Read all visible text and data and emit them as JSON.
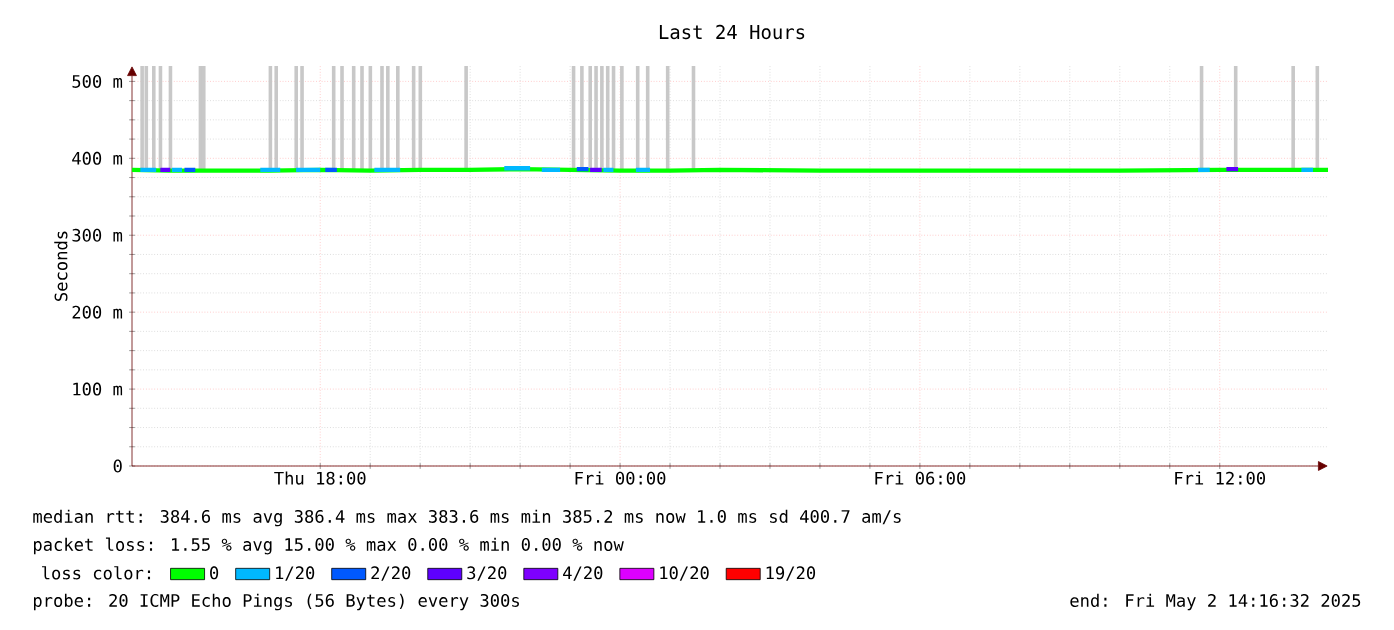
{
  "chart_data": {
    "type": "line",
    "title": "Last 24 Hours",
    "ylabel": "Seconds",
    "legend_title": "loss color:",
    "xlim": [
      "2025-05-01T14:14",
      "2025-05-02T14:10"
    ],
    "ylim": [
      0,
      520
    ],
    "xticks": [
      {
        "value": "2025-05-01T18:00",
        "label": "Thu 18:00"
      },
      {
        "value": "2025-05-02T00:00",
        "label": "Fri 00:00"
      },
      {
        "value": "2025-05-02T06:00",
        "label": "Fri 06:00"
      },
      {
        "value": "2025-05-02T12:00",
        "label": "Fri 12:00"
      }
    ],
    "yticks": [
      {
        "value": 0,
        "label": "0"
      },
      {
        "value": 100,
        "label": "100 m"
      },
      {
        "value": 200,
        "label": "200 m"
      },
      {
        "value": 300,
        "label": "300 m"
      },
      {
        "value": 400,
        "label": "400 m"
      },
      {
        "value": 500,
        "label": "500 m"
      }
    ],
    "grid": true,
    "legend": "bottom",
    "series": [
      {
        "type": "bar",
        "color": "#c8c8c8",
        "x": [
          "2025-05-01T14:24",
          "2025-05-01T14:29",
          "2025-05-01T14:38",
          "2025-05-01T14:46",
          "2025-05-01T14:58",
          "2025-05-01T15:34",
          "2025-05-01T15:38",
          "2025-05-01T16:58",
          "2025-05-01T17:05",
          "2025-05-01T17:29",
          "2025-05-01T17:36",
          "2025-05-01T18:14",
          "2025-05-01T18:24",
          "2025-05-01T18:38",
          "2025-05-01T18:48",
          "2025-05-01T18:58",
          "2025-05-01T19:12",
          "2025-05-01T19:19",
          "2025-05-01T19:31",
          "2025-05-01T19:50",
          "2025-05-01T19:58",
          "2025-05-01T20:53",
          "2025-05-01T23:02",
          "2025-05-01T23:12",
          "2025-05-01T23:22",
          "2025-05-01T23:29",
          "2025-05-01T23:36",
          "2025-05-01T23:43",
          "2025-05-01T23:50",
          "2025-05-02T00:00",
          "2025-05-02T00:19",
          "2025-05-02T00:31",
          "2025-05-02T00:55",
          "2025-05-02T01:26",
          "2025-05-02T11:36",
          "2025-05-02T12:17",
          "2025-05-02T13:26",
          "2025-05-02T13:55"
        ],
        "base": [
          385,
          385,
          385,
          385,
          385,
          385,
          385,
          385,
          385,
          385,
          385,
          385,
          385,
          385,
          385,
          385,
          385,
          385,
          385,
          385,
          385,
          385,
          385,
          385,
          385,
          385,
          385,
          385,
          385,
          385,
          385,
          385,
          385,
          385,
          385,
          385,
          385,
          385
        ],
        "values": [
          135,
          135,
          135,
          135,
          135,
          135,
          135,
          135,
          135,
          135,
          135,
          135,
          135,
          135,
          135,
          135,
          135,
          135,
          135,
          135,
          135,
          135,
          135,
          135,
          135,
          135,
          135,
          135,
          135,
          135,
          135,
          135,
          135,
          135,
          135,
          135,
          135,
          135
        ]
      },
      {
        "name": "0",
        "color": "#00ff00",
        "x": [
          "2025-05-01T14:14",
          "2025-05-01T15:00",
          "2025-05-01T16:00",
          "2025-05-01T17:00",
          "2025-05-01T18:00",
          "2025-05-01T19:00",
          "2025-05-01T20:00",
          "2025-05-01T21:00",
          "2025-05-01T22:00",
          "2025-05-01T23:00",
          "2025-05-02T00:00",
          "2025-05-02T01:00",
          "2025-05-02T02:00",
          "2025-05-02T04:00",
          "2025-05-02T06:00",
          "2025-05-02T08:00",
          "2025-05-02T10:00",
          "2025-05-02T12:00",
          "2025-05-02T14:10"
        ],
        "values": [
          385,
          384,
          384,
          384,
          385,
          384,
          385,
          385,
          386,
          385,
          384,
          384,
          385,
          384,
          384,
          384,
          384,
          385,
          385
        ]
      },
      {
        "name": "1/20",
        "color": "#00b8ff",
        "x": [
          "2025-05-01T14:24",
          "2025-05-01T14:43",
          "2025-05-01T14:48",
          "2025-05-01T15:02",
          "2025-05-01T15:14",
          "2025-05-01T15:18",
          "2025-05-01T16:48",
          "2025-05-01T17:12",
          "2025-05-01T17:18",
          "2025-05-01T17:31",
          "2025-05-01T18:00",
          "2025-05-01T18:06",
          "2025-05-01T19:05",
          "2025-05-01T19:36",
          "2025-05-01T19:42",
          "2025-05-01T21:41",
          "2025-05-01T22:12",
          "2025-05-01T22:18",
          "2025-05-01T22:26",
          "2025-05-01T22:48",
          "2025-05-01T22:54",
          "2025-05-01T23:40",
          "2025-05-01T23:52",
          "2025-05-01T23:54",
          "2025-05-02T00:19",
          "2025-05-02T00:36",
          "2025-05-02T00:42",
          "2025-05-02T11:34",
          "2025-05-02T11:48",
          "2025-05-02T11:50",
          "2025-05-02T13:38",
          "2025-05-02T13:52"
        ],
        "values": [
          385,
          385,
          null,
          385,
          385,
          null,
          385,
          385,
          null,
          385,
          385,
          null,
          385,
          385,
          null,
          387,
          387,
          null,
          385,
          385,
          null,
          385,
          385,
          null,
          385,
          385,
          null,
          385,
          385,
          null,
          385,
          385
        ]
      },
      {
        "name": "2/20",
        "color": "#0059ff",
        "x": [
          "2025-05-01T15:17",
          "2025-05-01T15:30",
          "2025-05-01T15:32",
          "2025-05-01T18:06",
          "2025-05-01T18:20",
          "2025-05-01T18:22",
          "2025-05-01T23:08",
          "2025-05-01T23:22"
        ],
        "values": [
          385,
          385,
          null,
          385,
          385,
          null,
          386,
          386
        ]
      },
      {
        "name": "3/20",
        "color": "#5e00ff",
        "x": [
          "2025-05-01T14:48",
          "2025-05-01T15:00",
          "2025-05-01T15:01",
          "2025-05-01T23:24",
          "2025-05-01T23:38",
          "2025-05-01T23:39",
          "2025-05-02T12:08",
          "2025-05-02T12:22"
        ],
        "values": [
          385,
          385,
          null,
          385,
          385,
          null,
          386,
          386
        ]
      },
      {
        "name": "4/20",
        "color": "#7e00ff"
      },
      {
        "name": "10/20",
        "color": "#dd00ff"
      },
      {
        "name": "19/20",
        "color": "#ff0000"
      }
    ],
    "annotations": [
      "median rtt:  384.6 ms avg   386.4 ms max   383.6 ms min   385.2 ms now   1.0 ms sd   400.7    am/s",
      "packet loss: 1.55 % avg   15.00 % max   0.00 % min   0.00 % now",
      "probe:       20 ICMP Echo Pings (56 Bytes) every 300s",
      "end: Fri May  2 14:16:32 2025"
    ]
  }
}
